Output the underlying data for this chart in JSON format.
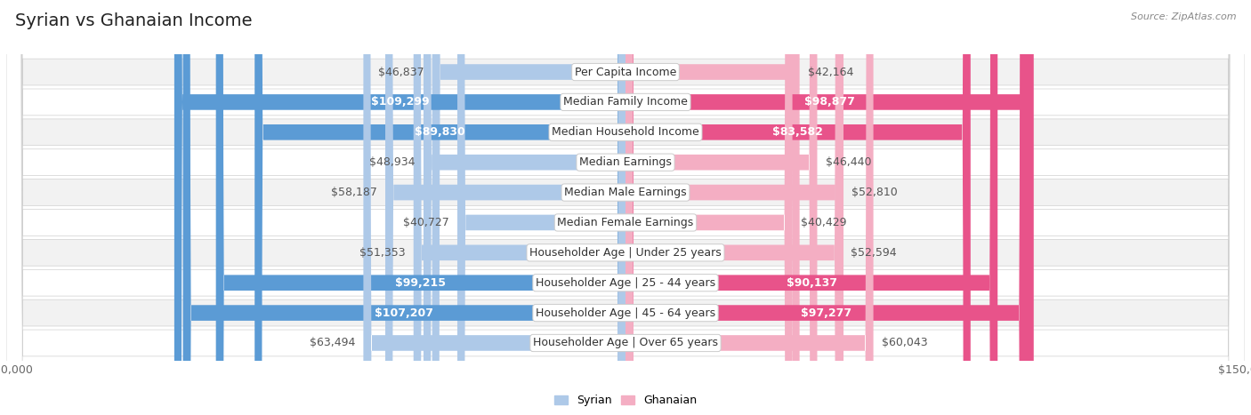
{
  "title": "Syrian vs Ghanaian Income",
  "source": "Source: ZipAtlas.com",
  "categories": [
    "Per Capita Income",
    "Median Family Income",
    "Median Household Income",
    "Median Earnings",
    "Median Male Earnings",
    "Median Female Earnings",
    "Householder Age | Under 25 years",
    "Householder Age | 25 - 44 years",
    "Householder Age | 45 - 64 years",
    "Householder Age | Over 65 years"
  ],
  "syrian_values": [
    46837,
    109299,
    89830,
    48934,
    58187,
    40727,
    51353,
    99215,
    107207,
    63494
  ],
  "ghanaian_values": [
    42164,
    98877,
    83582,
    46440,
    52810,
    40429,
    52594,
    90137,
    97277,
    60043
  ],
  "syrian_labels": [
    "$46,837",
    "$109,299",
    "$89,830",
    "$48,934",
    "$58,187",
    "$40,727",
    "$51,353",
    "$99,215",
    "$107,207",
    "$63,494"
  ],
  "ghanaian_labels": [
    "$42,164",
    "$98,877",
    "$83,582",
    "$46,440",
    "$52,810",
    "$40,429",
    "$52,594",
    "$90,137",
    "$97,277",
    "$60,043"
  ],
  "max_value": 150000,
  "syrian_color_light": "#aec9e8",
  "syrian_color_dark": "#5b9bd5",
  "ghanaian_color_light": "#f4aec3",
  "ghanaian_color_dark": "#e8538a",
  "label_inside_threshold": 75000,
  "bar_height": 0.52,
  "background_color": "#ffffff",
  "row_color_odd": "#f2f2f2",
  "row_color_even": "#ffffff",
  "title_fontsize": 14,
  "label_fontsize": 9,
  "category_fontsize": 9,
  "axis_label_fontsize": 9
}
